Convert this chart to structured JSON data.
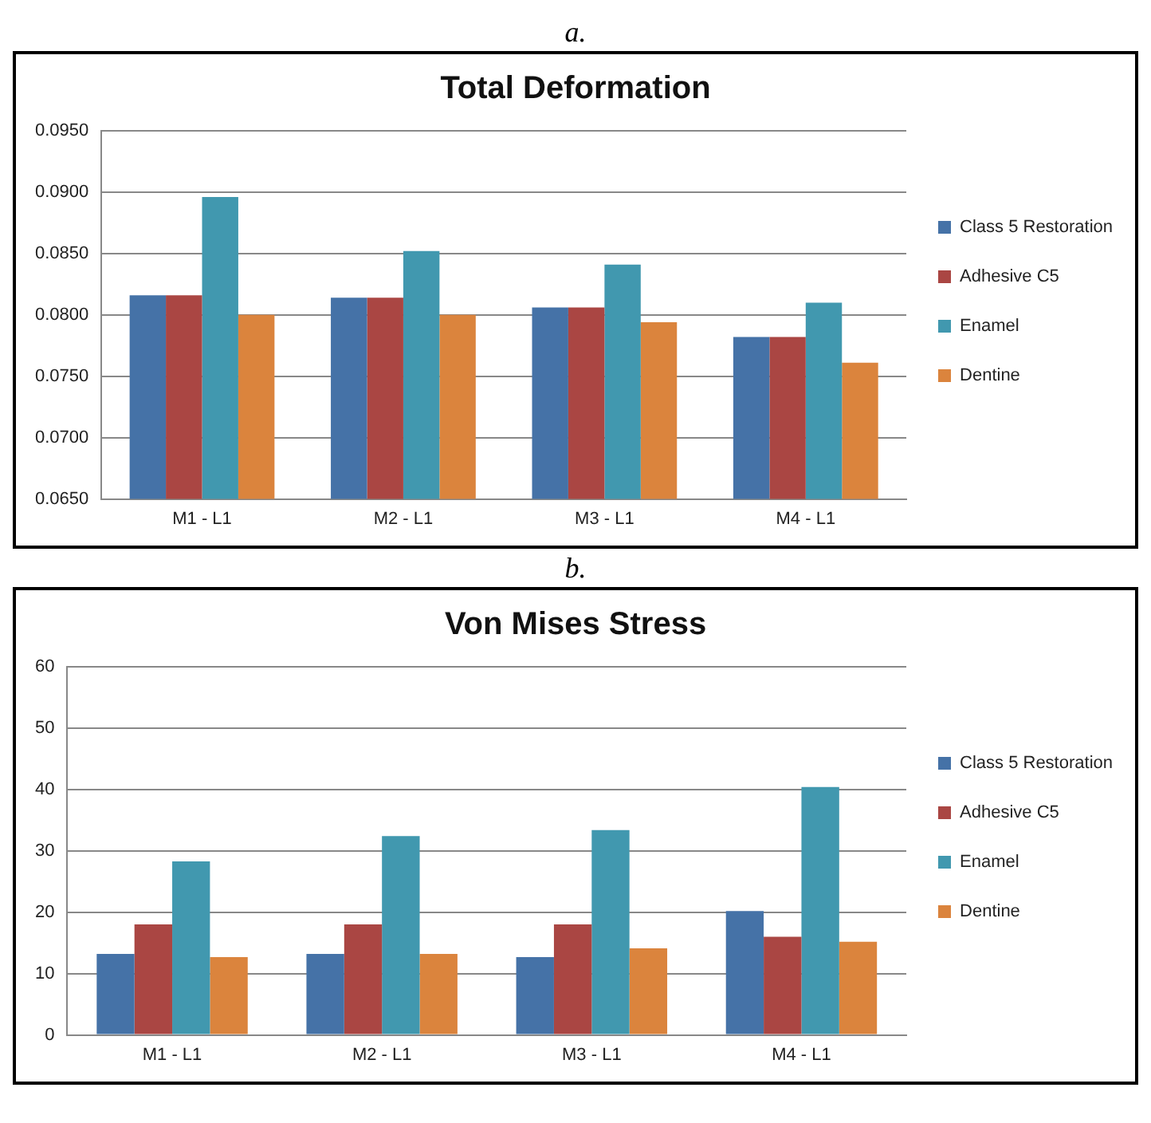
{
  "chart_data": [
    {
      "type": "bar",
      "title": "Total Deformation",
      "annotations": [
        "a."
      ],
      "categories": [
        "M1 - L1",
        "M2 - L1",
        "M3 - L1",
        "M4 - L1"
      ],
      "series": [
        {
          "name": "Class 5 Restoration",
          "color": "#4572a7",
          "values": [
            0.0816,
            0.0814,
            0.0806,
            0.0782
          ]
        },
        {
          "name": "Adhesive C5",
          "color": "#aa4643",
          "values": [
            0.0816,
            0.0814,
            0.0806,
            0.0782
          ]
        },
        {
          "name": "Enamel",
          "color": "#4198af",
          "values": [
            0.0896,
            0.0852,
            0.0841,
            0.081
          ]
        },
        {
          "name": "Dentine",
          "color": "#db843d",
          "values": [
            0.08,
            0.08,
            0.0794,
            0.0761
          ]
        }
      ],
      "ylim": [
        0.065,
        0.095
      ],
      "yticks": [
        {
          "value": 0.065,
          "label": "0.0650"
        },
        {
          "value": 0.07,
          "label": "0.0700"
        },
        {
          "value": 0.075,
          "label": "0.0750"
        },
        {
          "value": 0.08,
          "label": "0.0800"
        },
        {
          "value": 0.085,
          "label": "0.0850"
        },
        {
          "value": 0.09,
          "label": "0.0900"
        },
        {
          "value": 0.095,
          "label": "0.0950"
        }
      ],
      "grid": "y",
      "legend": "right"
    },
    {
      "type": "bar",
      "title": "Von Mises Stress",
      "annotations": [
        "b."
      ],
      "categories": [
        "M1 - L1",
        "M2 - L1",
        "M3 - L1",
        "M4 - L1"
      ],
      "series": [
        {
          "name": "Class 5 Restoration",
          "color": "#4572a7",
          "values": [
            13.2,
            13.2,
            12.7,
            20.2
          ]
        },
        {
          "name": "Adhesive C5",
          "color": "#aa4643",
          "values": [
            18.0,
            18.0,
            18.0,
            16.0
          ]
        },
        {
          "name": "Enamel",
          "color": "#4198af",
          "values": [
            28.3,
            32.4,
            33.4,
            40.4
          ]
        },
        {
          "name": "Dentine",
          "color": "#db843d",
          "values": [
            12.7,
            13.2,
            14.1,
            15.2
          ]
        }
      ],
      "ylim": [
        0,
        60
      ],
      "yticks": [
        0,
        10,
        20,
        30,
        40,
        50,
        60
      ],
      "grid": "y",
      "legend": "right"
    }
  ]
}
